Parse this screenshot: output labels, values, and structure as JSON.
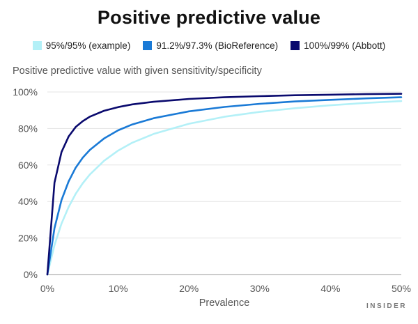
{
  "brand": "INSIDER",
  "chart_data": {
    "type": "line",
    "title": "Positive predictive value",
    "subtitle": "Positive predictive value with given sensitivity/specificity",
    "xlabel": "Prevalence",
    "ylabel": "",
    "xlim": [
      0,
      50
    ],
    "ylim": [
      0,
      100
    ],
    "x_unit": "%",
    "y_unit": "%",
    "x_ticks": [
      "0%",
      "10%",
      "20%",
      "30%",
      "40%",
      "50%"
    ],
    "y_ticks": [
      "0%",
      "20%",
      "40%",
      "60%",
      "80%",
      "100%"
    ],
    "grid": true,
    "legend_position": "top",
    "x": [
      0,
      1,
      2,
      3,
      4,
      5,
      6,
      8,
      10,
      12,
      15,
      20,
      25,
      30,
      35,
      40,
      45,
      50
    ],
    "series": [
      {
        "name": "95%/95% (example)",
        "color": "#b3f0f7",
        "values": [
          0,
          16.1,
          27.9,
          37.0,
          44.2,
          50.0,
          54.8,
          62.3,
          67.9,
          72.2,
          77.0,
          82.6,
          86.4,
          89.1,
          91.1,
          92.7,
          94.0,
          95.0
        ]
      },
      {
        "name": "91.2%/97.3% (BioReference)",
        "color": "#1a7ad6",
        "values": [
          0,
          25.4,
          40.8,
          51.0,
          58.5,
          64.0,
          68.3,
          74.5,
          79.0,
          82.2,
          85.6,
          89.4,
          91.8,
          93.5,
          94.8,
          95.7,
          96.5,
          97.1
        ]
      },
      {
        "name": "100%/99% (Abbott)",
        "color": "#0a0a6e",
        "values": [
          0,
          50.3,
          67.1,
          75.6,
          80.8,
          84.0,
          86.5,
          89.7,
          91.7,
          93.2,
          94.6,
          96.2,
          97.1,
          97.7,
          98.2,
          98.5,
          98.8,
          99.0
        ]
      }
    ]
  }
}
